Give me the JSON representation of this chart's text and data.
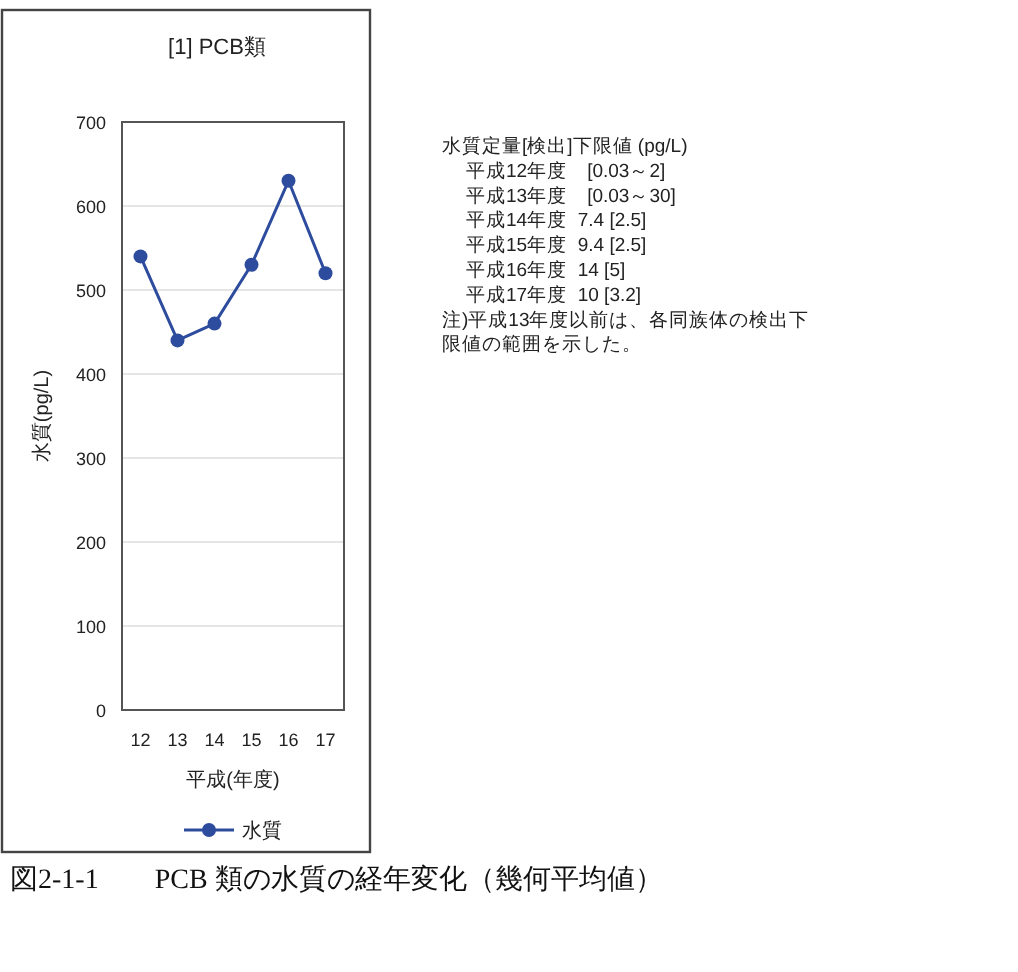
{
  "chart_data": {
    "type": "line",
    "title": "[1] PCB類",
    "categories": [
      "12",
      "13",
      "14",
      "15",
      "16",
      "17"
    ],
    "series": [
      {
        "name": "水質",
        "color": "#2e4c9e",
        "values": [
          540,
          440,
          460,
          530,
          630,
          520
        ]
      }
    ],
    "xlabel": "平成(年度)",
    "ylabel": "水質(pg/L)",
    "ylim": [
      0,
      700
    ],
    "yticks": [
      0,
      100,
      200,
      300,
      400,
      500,
      600,
      700
    ],
    "grid": "y",
    "legend": "bottom",
    "marker": "circle",
    "line_style": "solid",
    "annotations": [
      "水質定量[検出]下限値 (pg/L)",
      "平成12年度　[0.03～2]",
      "平成13年度　[0.03～30]",
      "平成14年度  7.4 [2.5]",
      "平成15年度  9.4 [2.5]",
      "平成16年度  14 [5]",
      "平成17年度  10 [3.2]",
      "注)平成13年度以前は、各同族体の検出下",
      "限値の範囲を示した。",
      "図2-1-1　　PCB 類の水質の経年変化（幾何平均値）"
    ]
  }
}
